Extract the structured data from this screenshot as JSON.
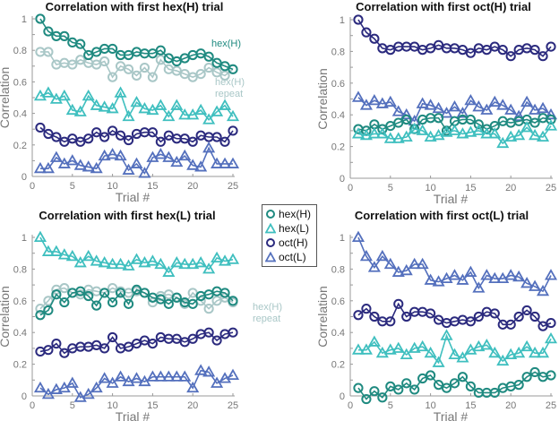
{
  "colors": {
    "hexH": "#1f8a80",
    "hexL": "#3fbfbf",
    "octH": "#2b2a7e",
    "octL": "#5470bd",
    "hexH_repeat": "#a9c7c7",
    "axis": "#999999"
  },
  "legend": {
    "placement": "center",
    "items": [
      {
        "label": "hex(H)",
        "marker": "circle",
        "color_key": "hexH"
      },
      {
        "label": "hex(L)",
        "marker": "triangle",
        "color_key": "hexL"
      },
      {
        "label": "oct(H)",
        "marker": "circle",
        "color_key": "octH"
      },
      {
        "label": "oct(L)",
        "marker": "triangle",
        "color_key": "octL"
      }
    ]
  },
  "chart_data": [
    {
      "type": "line",
      "title": "Correlation with first hex(H) trial",
      "xlabel": "Trial #",
      "ylabel": "Correlation",
      "xlim": [
        0,
        25
      ],
      "ylim": [
        0,
        1
      ],
      "xticks": [
        0,
        5,
        10,
        15,
        20,
        25
      ],
      "yticks": [
        0,
        0.2,
        0.4,
        0.6,
        0.8,
        1
      ],
      "yticklabels": [
        "0",
        "0.2",
        "0.4",
        "0.6",
        "0.8",
        "1"
      ],
      "x": [
        1,
        2,
        3,
        4,
        5,
        6,
        7,
        8,
        9,
        10,
        11,
        12,
        13,
        14,
        15,
        16,
        17,
        18,
        19,
        20,
        21,
        22,
        23,
        24,
        25
      ],
      "annotations": [
        {
          "text": "hex(H)",
          "series": "hexH"
        },
        {
          "text": "hex(H)",
          "series": "hexH_repeat"
        },
        {
          "text": "repeat",
          "series": "hexH_repeat"
        }
      ],
      "series": [
        {
          "name": "hex(H) repeat",
          "key": "hexH_repeat",
          "marker": "circle",
          "values": [
            0.79,
            0.79,
            0.71,
            0.72,
            0.71,
            0.74,
            0.72,
            0.71,
            0.73,
            0.63,
            0.7,
            0.68,
            0.64,
            0.69,
            0.63,
            0.74,
            0.68,
            0.67,
            0.65,
            0.63,
            0.65,
            0.69,
            0.66,
            0.64,
            0.68
          ]
        },
        {
          "name": "hex(H)",
          "key": "hexH",
          "marker": "circle",
          "values": [
            1.0,
            0.92,
            0.89,
            0.89,
            0.85,
            0.84,
            0.77,
            0.79,
            0.81,
            0.81,
            0.77,
            0.77,
            0.79,
            0.78,
            0.78,
            0.8,
            0.75,
            0.73,
            0.75,
            0.77,
            0.78,
            0.76,
            0.72,
            0.7,
            0.68
          ]
        },
        {
          "name": "hex(L)",
          "key": "hexL",
          "marker": "triangle",
          "values": [
            0.51,
            0.53,
            0.49,
            0.51,
            0.42,
            0.41,
            0.51,
            0.45,
            0.44,
            0.43,
            0.53,
            0.38,
            0.47,
            0.43,
            0.42,
            0.45,
            0.38,
            0.45,
            0.39,
            0.39,
            0.42,
            0.36,
            0.41,
            0.45,
            0.38
          ]
        },
        {
          "name": "oct(H)",
          "key": "octH",
          "marker": "circle",
          "values": [
            0.31,
            0.27,
            0.25,
            0.22,
            0.24,
            0.22,
            0.24,
            0.28,
            0.25,
            0.29,
            0.26,
            0.23,
            0.27,
            0.28,
            0.28,
            0.22,
            0.26,
            0.24,
            0.24,
            0.22,
            0.26,
            0.25,
            0.25,
            0.22,
            0.29
          ]
        },
        {
          "name": "oct(L)",
          "key": "octL",
          "marker": "triangle",
          "values": [
            0.05,
            0.05,
            0.12,
            0.08,
            0.1,
            0.07,
            0.06,
            0.05,
            0.13,
            0.14,
            0.13,
            0.04,
            0.08,
            0.02,
            0.12,
            0.14,
            0.12,
            0.09,
            0.13,
            0.07,
            0.06,
            0.18,
            0.08,
            0.08,
            0.08
          ]
        }
      ]
    },
    {
      "type": "line",
      "title": "Correlation with first oct(H) trial",
      "xlabel": "Trial #",
      "ylabel": "Correlation",
      "xlim": [
        0,
        25
      ],
      "ylim": [
        0,
        1
      ],
      "xticks": [
        0,
        5,
        10,
        15,
        20,
        25
      ],
      "yticks": [
        0,
        0.2,
        0.4,
        0.6,
        0.8,
        1
      ],
      "yticklabels": [
        "0",
        "0.2",
        "0.4",
        "0.6",
        "0.8",
        "1"
      ],
      "x": [
        1,
        2,
        3,
        4,
        5,
        6,
        7,
        8,
        9,
        10,
        11,
        12,
        13,
        14,
        15,
        16,
        17,
        18,
        19,
        20,
        21,
        22,
        23,
        24,
        25
      ],
      "annotations": [],
      "series": [
        {
          "name": "oct(H)",
          "key": "octH",
          "marker": "circle",
          "values": [
            1.0,
            0.92,
            0.88,
            0.82,
            0.81,
            0.83,
            0.83,
            0.83,
            0.81,
            0.82,
            0.84,
            0.82,
            0.82,
            0.81,
            0.79,
            0.82,
            0.81,
            0.83,
            0.81,
            0.77,
            0.81,
            0.82,
            0.81,
            0.77,
            0.83
          ]
        },
        {
          "name": "oct(L)",
          "key": "octL",
          "marker": "triangle",
          "values": [
            0.51,
            0.46,
            0.49,
            0.47,
            0.48,
            0.42,
            0.4,
            0.36,
            0.47,
            0.46,
            0.44,
            0.41,
            0.45,
            0.41,
            0.49,
            0.45,
            0.43,
            0.48,
            0.46,
            0.43,
            0.39,
            0.48,
            0.43,
            0.44,
            0.4
          ]
        },
        {
          "name": "hex(H)",
          "key": "hexH",
          "marker": "circle",
          "values": [
            0.31,
            0.3,
            0.34,
            0.31,
            0.33,
            0.35,
            0.37,
            0.31,
            0.37,
            0.38,
            0.38,
            0.3,
            0.36,
            0.37,
            0.37,
            0.34,
            0.31,
            0.33,
            0.36,
            0.35,
            0.36,
            0.37,
            0.35,
            0.38,
            0.37
          ]
        },
        {
          "name": "hex(L)",
          "key": "hexL",
          "marker": "triangle",
          "values": [
            0.28,
            0.27,
            0.28,
            0.28,
            0.25,
            0.25,
            0.26,
            0.31,
            0.3,
            0.26,
            0.27,
            0.29,
            0.3,
            0.28,
            0.29,
            0.3,
            0.28,
            0.28,
            0.22,
            0.26,
            0.27,
            0.32,
            0.27,
            0.26,
            0.33
          ]
        }
      ]
    },
    {
      "type": "line",
      "title": "Correlation with first hex(L) trial",
      "xlabel": "Trial #",
      "ylabel": "Correlation",
      "xlim": [
        0,
        25
      ],
      "ylim": [
        0,
        1
      ],
      "xticks": [
        0,
        5,
        10,
        15,
        20,
        25
      ],
      "yticks": [
        0,
        0.2,
        0.4,
        0.6,
        0.8,
        1
      ],
      "yticklabels": [
        "0",
        "0.2",
        "0.4",
        "0.6",
        "0.8",
        "1"
      ],
      "x": [
        1,
        2,
        3,
        4,
        5,
        6,
        7,
        8,
        9,
        10,
        11,
        12,
        13,
        14,
        15,
        16,
        17,
        18,
        19,
        20,
        21,
        22,
        23,
        24,
        25
      ],
      "annotations": [
        {
          "text": "hex(H)",
          "series": "hexH_repeat"
        },
        {
          "text": "repeat",
          "series": "hexH_repeat"
        }
      ],
      "series": [
        {
          "name": "hex(L)",
          "key": "hexL",
          "marker": "triangle",
          "values": [
            1.0,
            0.91,
            0.91,
            0.89,
            0.88,
            0.84,
            0.88,
            0.85,
            0.84,
            0.83,
            0.83,
            0.82,
            0.86,
            0.84,
            0.85,
            0.83,
            0.78,
            0.84,
            0.83,
            0.83,
            0.84,
            0.8,
            0.87,
            0.85,
            0.86
          ]
        },
        {
          "name": "hex(H) repeat",
          "key": "hexH_repeat",
          "marker": "circle",
          "values": [
            0.55,
            0.6,
            0.67,
            0.68,
            0.65,
            0.64,
            0.67,
            0.66,
            0.65,
            0.68,
            0.66,
            0.65,
            0.66,
            0.65,
            0.59,
            0.63,
            0.64,
            0.62,
            0.58,
            0.65,
            0.6,
            0.55,
            0.6,
            0.62,
            0.59
          ]
        },
        {
          "name": "hex(H)",
          "key": "hexH",
          "marker": "circle",
          "values": [
            0.51,
            0.54,
            0.64,
            0.59,
            0.65,
            0.66,
            0.63,
            0.57,
            0.65,
            0.59,
            0.65,
            0.58,
            0.67,
            0.65,
            0.62,
            0.61,
            0.58,
            0.62,
            0.59,
            0.58,
            0.63,
            0.64,
            0.66,
            0.65,
            0.6
          ]
        },
        {
          "name": "oct(H)",
          "key": "octH",
          "marker": "circle",
          "values": [
            0.28,
            0.29,
            0.33,
            0.27,
            0.3,
            0.31,
            0.31,
            0.32,
            0.3,
            0.37,
            0.3,
            0.31,
            0.33,
            0.35,
            0.33,
            0.37,
            0.36,
            0.36,
            0.34,
            0.36,
            0.39,
            0.4,
            0.35,
            0.39,
            0.4
          ]
        },
        {
          "name": "oct(L)",
          "key": "octL",
          "marker": "triangle",
          "values": [
            0.05,
            0.01,
            0.04,
            0.05,
            0.08,
            -0.01,
            0.01,
            0.05,
            0.11,
            0.08,
            0.12,
            0.09,
            0.11,
            0.09,
            0.12,
            0.12,
            0.12,
            0.12,
            0.12,
            0.05,
            0.16,
            0.15,
            0.08,
            0.11,
            0.13
          ]
        }
      ]
    },
    {
      "type": "line",
      "title": "Correlation with first oct(L) trial",
      "xlabel": "Trial #",
      "ylabel": "Correlation",
      "xlim": [
        0,
        25
      ],
      "ylim": [
        0,
        1
      ],
      "xticks": [
        0,
        5,
        10,
        15,
        20,
        25
      ],
      "yticks": [
        0,
        0.2,
        0.4,
        0.6,
        0.8,
        1
      ],
      "yticklabels": [
        "0",
        "0.2",
        "0.4",
        "0.6",
        "0.8",
        "1"
      ],
      "x": [
        1,
        2,
        3,
        4,
        5,
        6,
        7,
        8,
        9,
        10,
        11,
        12,
        13,
        14,
        15,
        16,
        17,
        18,
        19,
        20,
        21,
        22,
        23,
        24,
        25
      ],
      "annotations": [],
      "series": [
        {
          "name": "oct(L)",
          "key": "octL",
          "marker": "triangle",
          "values": [
            1.0,
            0.88,
            0.81,
            0.88,
            0.83,
            0.78,
            0.79,
            0.83,
            0.83,
            0.73,
            0.72,
            0.74,
            0.76,
            0.73,
            0.78,
            0.68,
            0.76,
            0.74,
            0.74,
            0.76,
            0.75,
            0.71,
            0.69,
            0.66,
            0.76
          ]
        },
        {
          "name": "oct(H)",
          "key": "octH",
          "marker": "circle",
          "values": [
            0.51,
            0.55,
            0.5,
            0.47,
            0.47,
            0.58,
            0.5,
            0.53,
            0.53,
            0.52,
            0.48,
            0.46,
            0.47,
            0.48,
            0.47,
            0.5,
            0.53,
            0.52,
            0.45,
            0.45,
            0.5,
            0.54,
            0.5,
            0.44,
            0.46
          ]
        },
        {
          "name": "hex(L)",
          "key": "hexL",
          "marker": "triangle",
          "values": [
            0.29,
            0.29,
            0.34,
            0.27,
            0.29,
            0.3,
            0.26,
            0.3,
            0.31,
            0.27,
            0.21,
            0.38,
            0.26,
            0.24,
            0.29,
            0.31,
            0.32,
            0.27,
            0.22,
            0.26,
            0.27,
            0.31,
            0.27,
            0.27,
            0.36
          ]
        },
        {
          "name": "hex(H)",
          "key": "hexH",
          "marker": "circle",
          "values": [
            0.05,
            -0.02,
            0.03,
            -0.01,
            0.06,
            0.04,
            0.08,
            0.04,
            0.11,
            0.13,
            0.07,
            0.05,
            0.08,
            0.12,
            0.06,
            0.02,
            0.02,
            0.02,
            0.05,
            0.06,
            0.07,
            0.12,
            0.15,
            0.12,
            0.13
          ]
        }
      ]
    }
  ]
}
